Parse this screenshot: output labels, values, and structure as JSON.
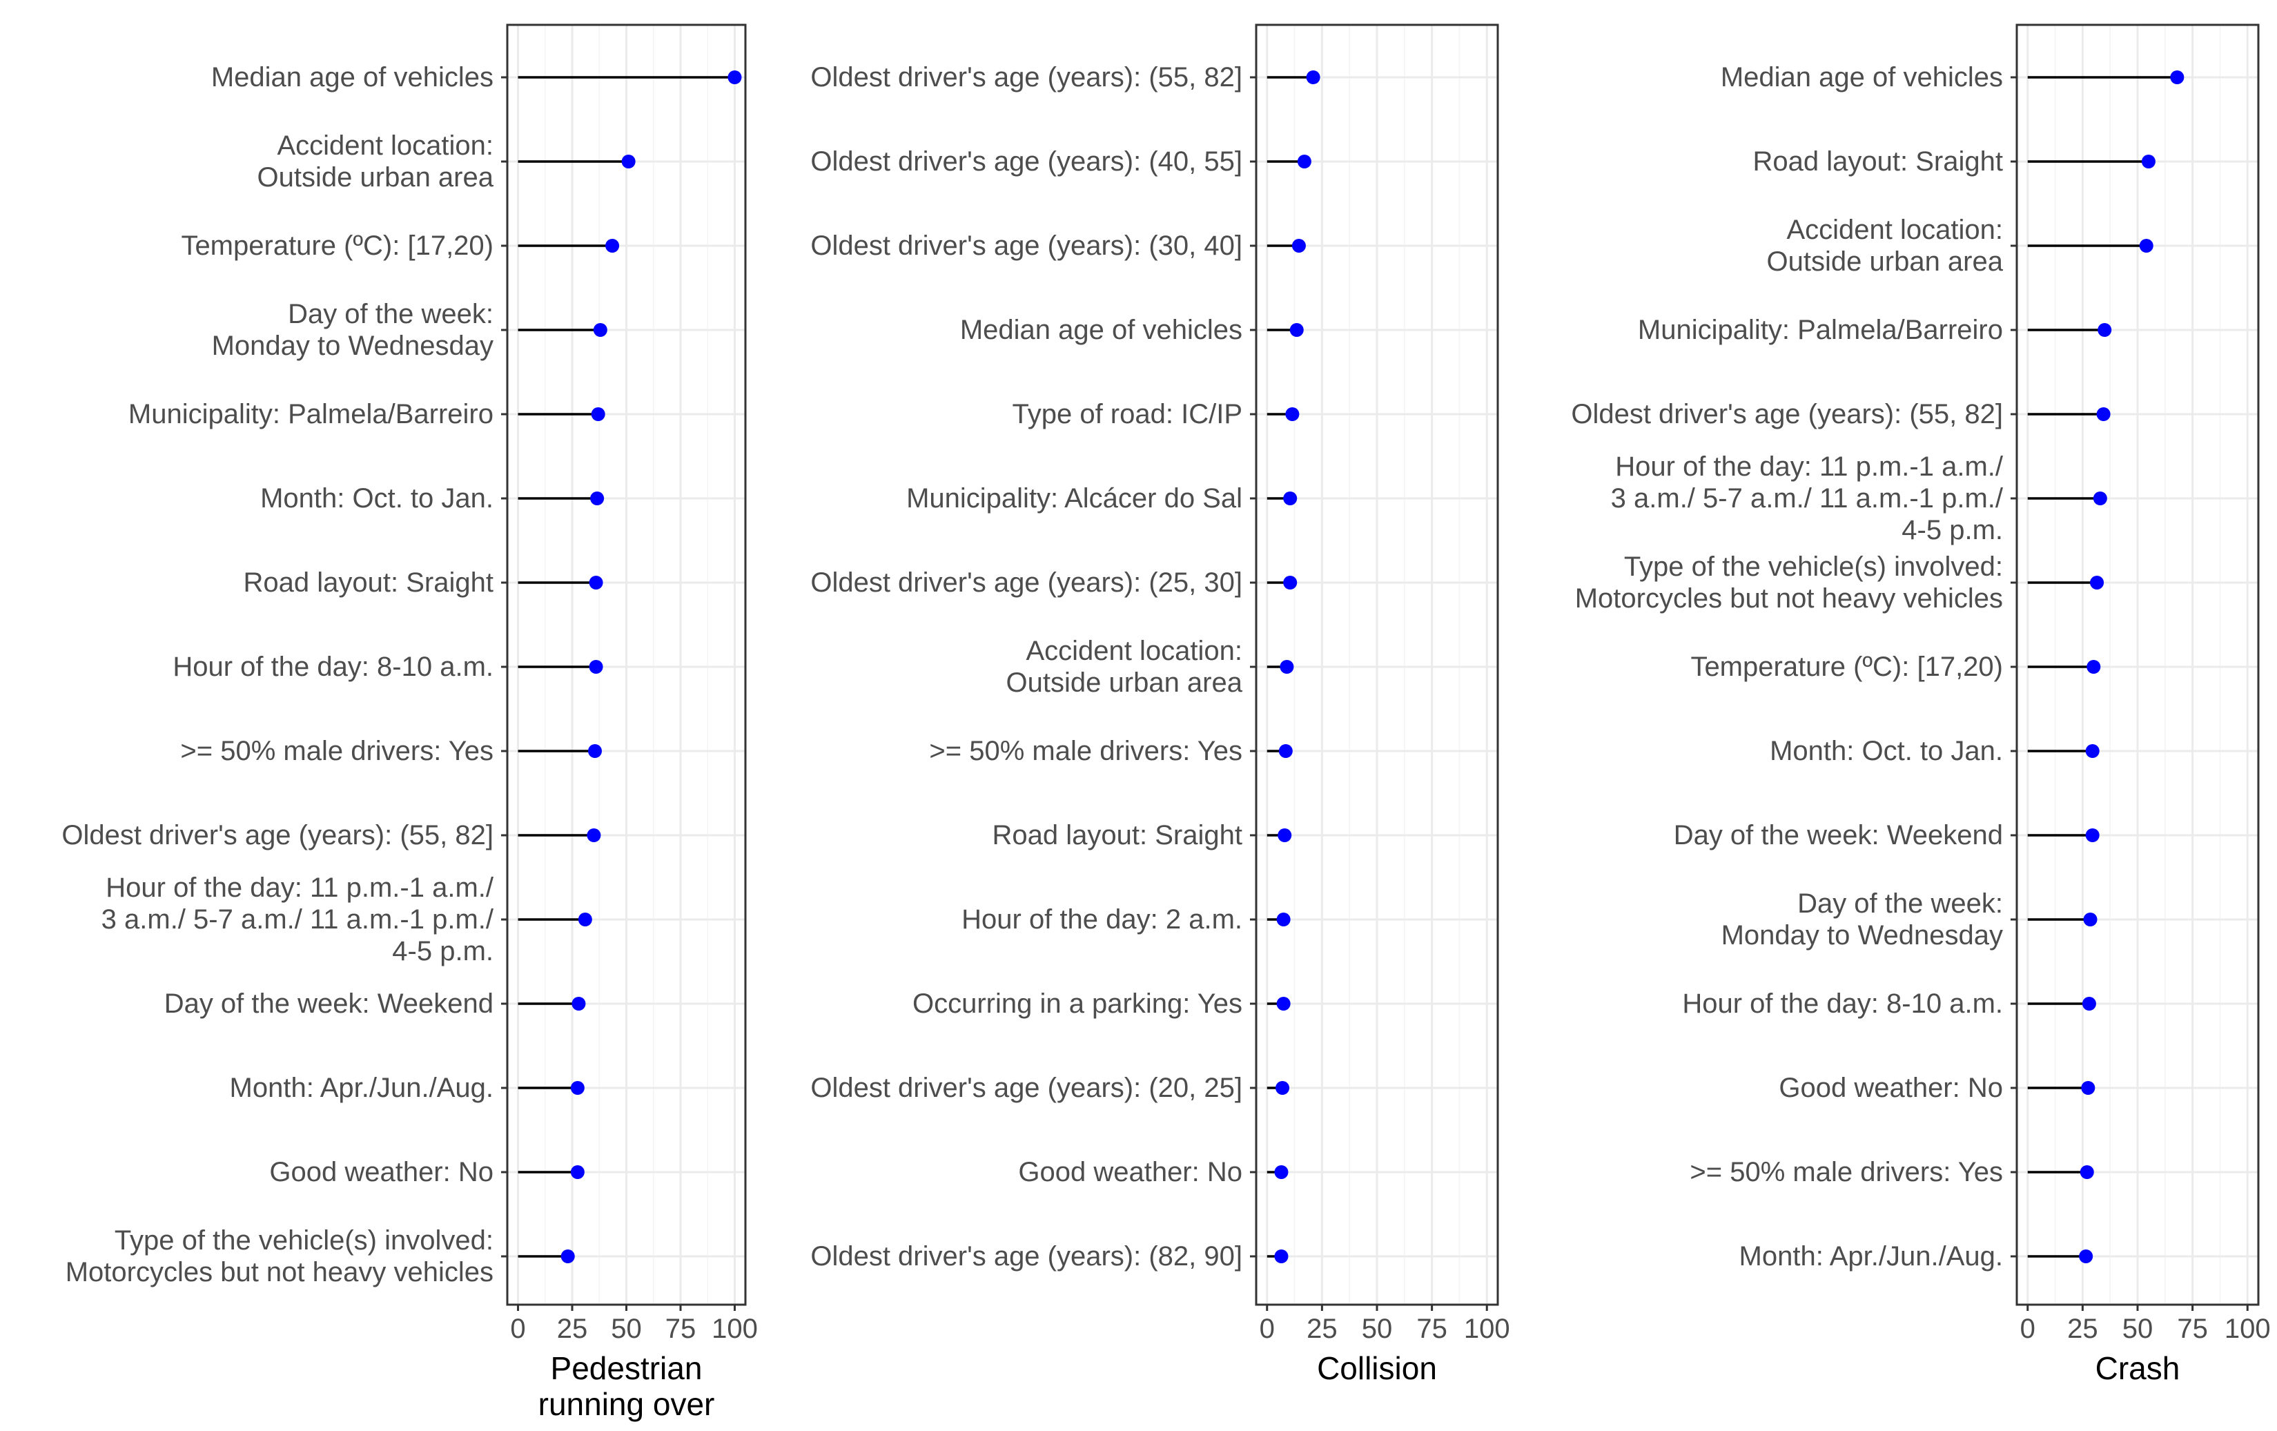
{
  "chart_data": [
    {
      "type": "lollipop",
      "xlabel": "Pedestrian\nrunning over",
      "xlim": [
        0,
        100
      ],
      "xticks": [
        "0",
        "25",
        "50",
        "75",
        "100"
      ],
      "grid": true,
      "point_color": "#0000ff",
      "categories": [
        "Median age of vehicles",
        "Accident location:\nOutside urban area",
        "Temperature (ºC): [17,20)",
        "Day of the week:\nMonday to Wednesday",
        "Municipality: Palmela/Barreiro",
        "Month: Oct. to Jan.",
        "Road layout: Sraight",
        "Hour of the day: 8-10 a.m.",
        ">= 50% male drivers: Yes",
        "Oldest driver's age (years): (55, 82]",
        "Hour of the day: 11 p.m.-1 a.m./\n3 a.m./ 5-7 a.m./ 11 a.m.-1 p.m./\n4-5 p.m.",
        "Day of the week: Weekend",
        "Month: Apr./Jun./Aug.",
        "Good weather: No",
        "Type of the vehicle(s) involved:\nMotorcycles but not heavy vehicles"
      ],
      "values": [
        100,
        51,
        43.5,
        38,
        37,
        36.5,
        36,
        36,
        35.5,
        35,
        31,
        28,
        27.5,
        27.5,
        23
      ]
    },
    {
      "type": "lollipop",
      "xlabel": "Collision",
      "xlim": [
        0,
        100
      ],
      "xticks": [
        "0",
        "25",
        "50",
        "75",
        "100"
      ],
      "grid": true,
      "point_color": "#0000ff",
      "categories": [
        "Oldest driver's age (years): (55, 82]",
        "Oldest driver's age (years): (40, 55]",
        "Oldest driver's age (years): (30, 40]",
        "Median age of vehicles",
        "Type of road: IC/IP",
        "Municipality: Alcácer do Sal",
        "Oldest driver's age (years): (25, 30]",
        "Accident location:\nOutside urban area",
        ">= 50% male drivers: Yes",
        "Road layout: Sraight",
        "Hour of the day: 2 a.m.",
        "Occurring in a parking: Yes",
        "Oldest driver's age (years): (20, 25]",
        "Good weather: No",
        "Oldest driver's age (years): (82, 90]"
      ],
      "values": [
        21,
        17,
        14.5,
        13.5,
        11.5,
        10.5,
        10.5,
        9,
        8.5,
        8,
        7.5,
        7.5,
        7,
        6.5,
        6.5
      ]
    },
    {
      "type": "lollipop",
      "xlabel": "Crash",
      "xlim": [
        0,
        100
      ],
      "xticks": [
        "0",
        "25",
        "50",
        "75",
        "100"
      ],
      "grid": true,
      "point_color": "#0000ff",
      "categories": [
        "Median age of vehicles",
        "Road layout: Sraight",
        "Accident location:\nOutside urban area",
        "Municipality: Palmela/Barreiro",
        "Oldest driver's age (years): (55, 82]",
        "Hour of the day: 11 p.m.-1 a.m./\n3 a.m./ 5-7 a.m./ 11 a.m.-1 p.m./\n4-5 p.m.",
        "Type of the vehicle(s) involved:\nMotorcycles but not heavy vehicles",
        "Temperature (ºC): [17,20)",
        "Month: Oct. to Jan.",
        "Day of the week: Weekend",
        "Day of the week:\nMonday to Wednesday",
        "Hour of the day: 8-10 a.m.",
        "Good weather: No",
        ">= 50% male drivers: Yes",
        "Month: Apr./Jun./Aug."
      ],
      "values": [
        68,
        55,
        54,
        35,
        34.5,
        33,
        31.5,
        30,
        29.5,
        29.5,
        28.5,
        28,
        27.5,
        27,
        26.5
      ]
    }
  ]
}
